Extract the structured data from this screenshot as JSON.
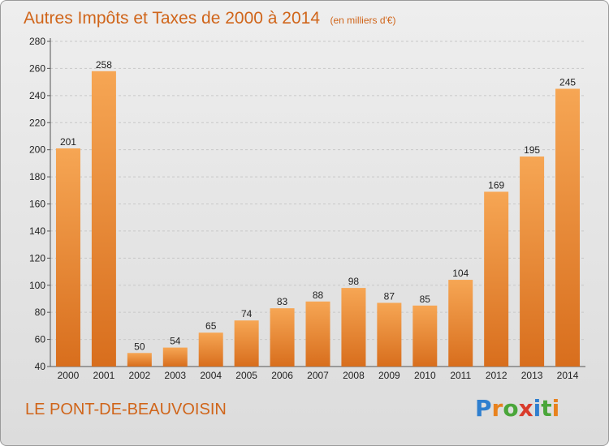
{
  "title": "Autres Impôts et Taxes de 2000 à 2014",
  "unit": "(en milliers d'€)",
  "commune": "LE PONT-DE-BEAUVOISIN",
  "logo": {
    "letters": [
      "P",
      "r",
      "o",
      "x",
      "i",
      "t",
      "i"
    ],
    "colors": [
      "#2f7fcf",
      "#e8821e",
      "#4aa63a",
      "#d93b2b",
      "#2f7fcf",
      "#4aa63a",
      "#e8821e"
    ]
  },
  "colors": {
    "bar_top": "#f6a654",
    "bar_bottom": "#d86e1d",
    "accent": "#d0651a"
  },
  "chart_data": {
    "type": "bar",
    "title": "Autres Impôts et Taxes de 2000 à 2014",
    "subtitle": "(en milliers d'€)",
    "categories": [
      "2000",
      "2001",
      "2002",
      "2003",
      "2004",
      "2005",
      "2006",
      "2007",
      "2008",
      "2009",
      "2010",
      "2011",
      "2012",
      "2013",
      "2014"
    ],
    "values": [
      201,
      258,
      50,
      54,
      65,
      74,
      83,
      88,
      98,
      87,
      85,
      104,
      169,
      195,
      245
    ],
    "ylim": [
      40,
      280
    ],
    "yticks": [
      40,
      60,
      80,
      100,
      120,
      140,
      160,
      180,
      200,
      220,
      240,
      260,
      280
    ],
    "grid": true,
    "legend": "none"
  }
}
